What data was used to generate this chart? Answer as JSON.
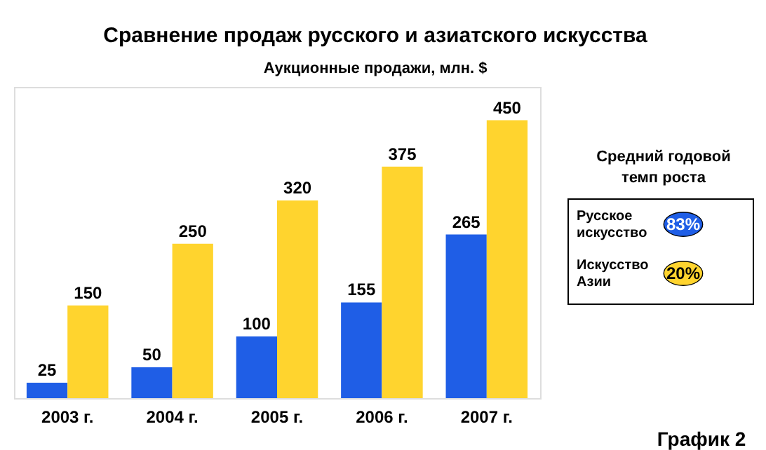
{
  "chart_data": {
    "type": "bar",
    "title": "Сравнение продаж русского и азиатского искусства",
    "subtitle": "Аукционные продажи, млн. $",
    "categories": [
      "2003 г.",
      "2004 г.",
      "2005 г.",
      "2006 г.",
      "2007 г."
    ],
    "series": [
      {
        "name": "Русское искусство",
        "color": "#1f5ee6",
        "values": [
          25,
          50,
          100,
          155,
          265
        ]
      },
      {
        "name": "Искусство Азии",
        "color": "#ffd42e",
        "values": [
          150,
          250,
          320,
          375,
          450
        ]
      }
    ],
    "data_labels": true,
    "tick_labels": "x",
    "grid": false,
    "legend": "right",
    "legend_title": "Средний годовой темп роста",
    "annotations": [
      "83%",
      "20%",
      "График 2"
    ]
  }
}
